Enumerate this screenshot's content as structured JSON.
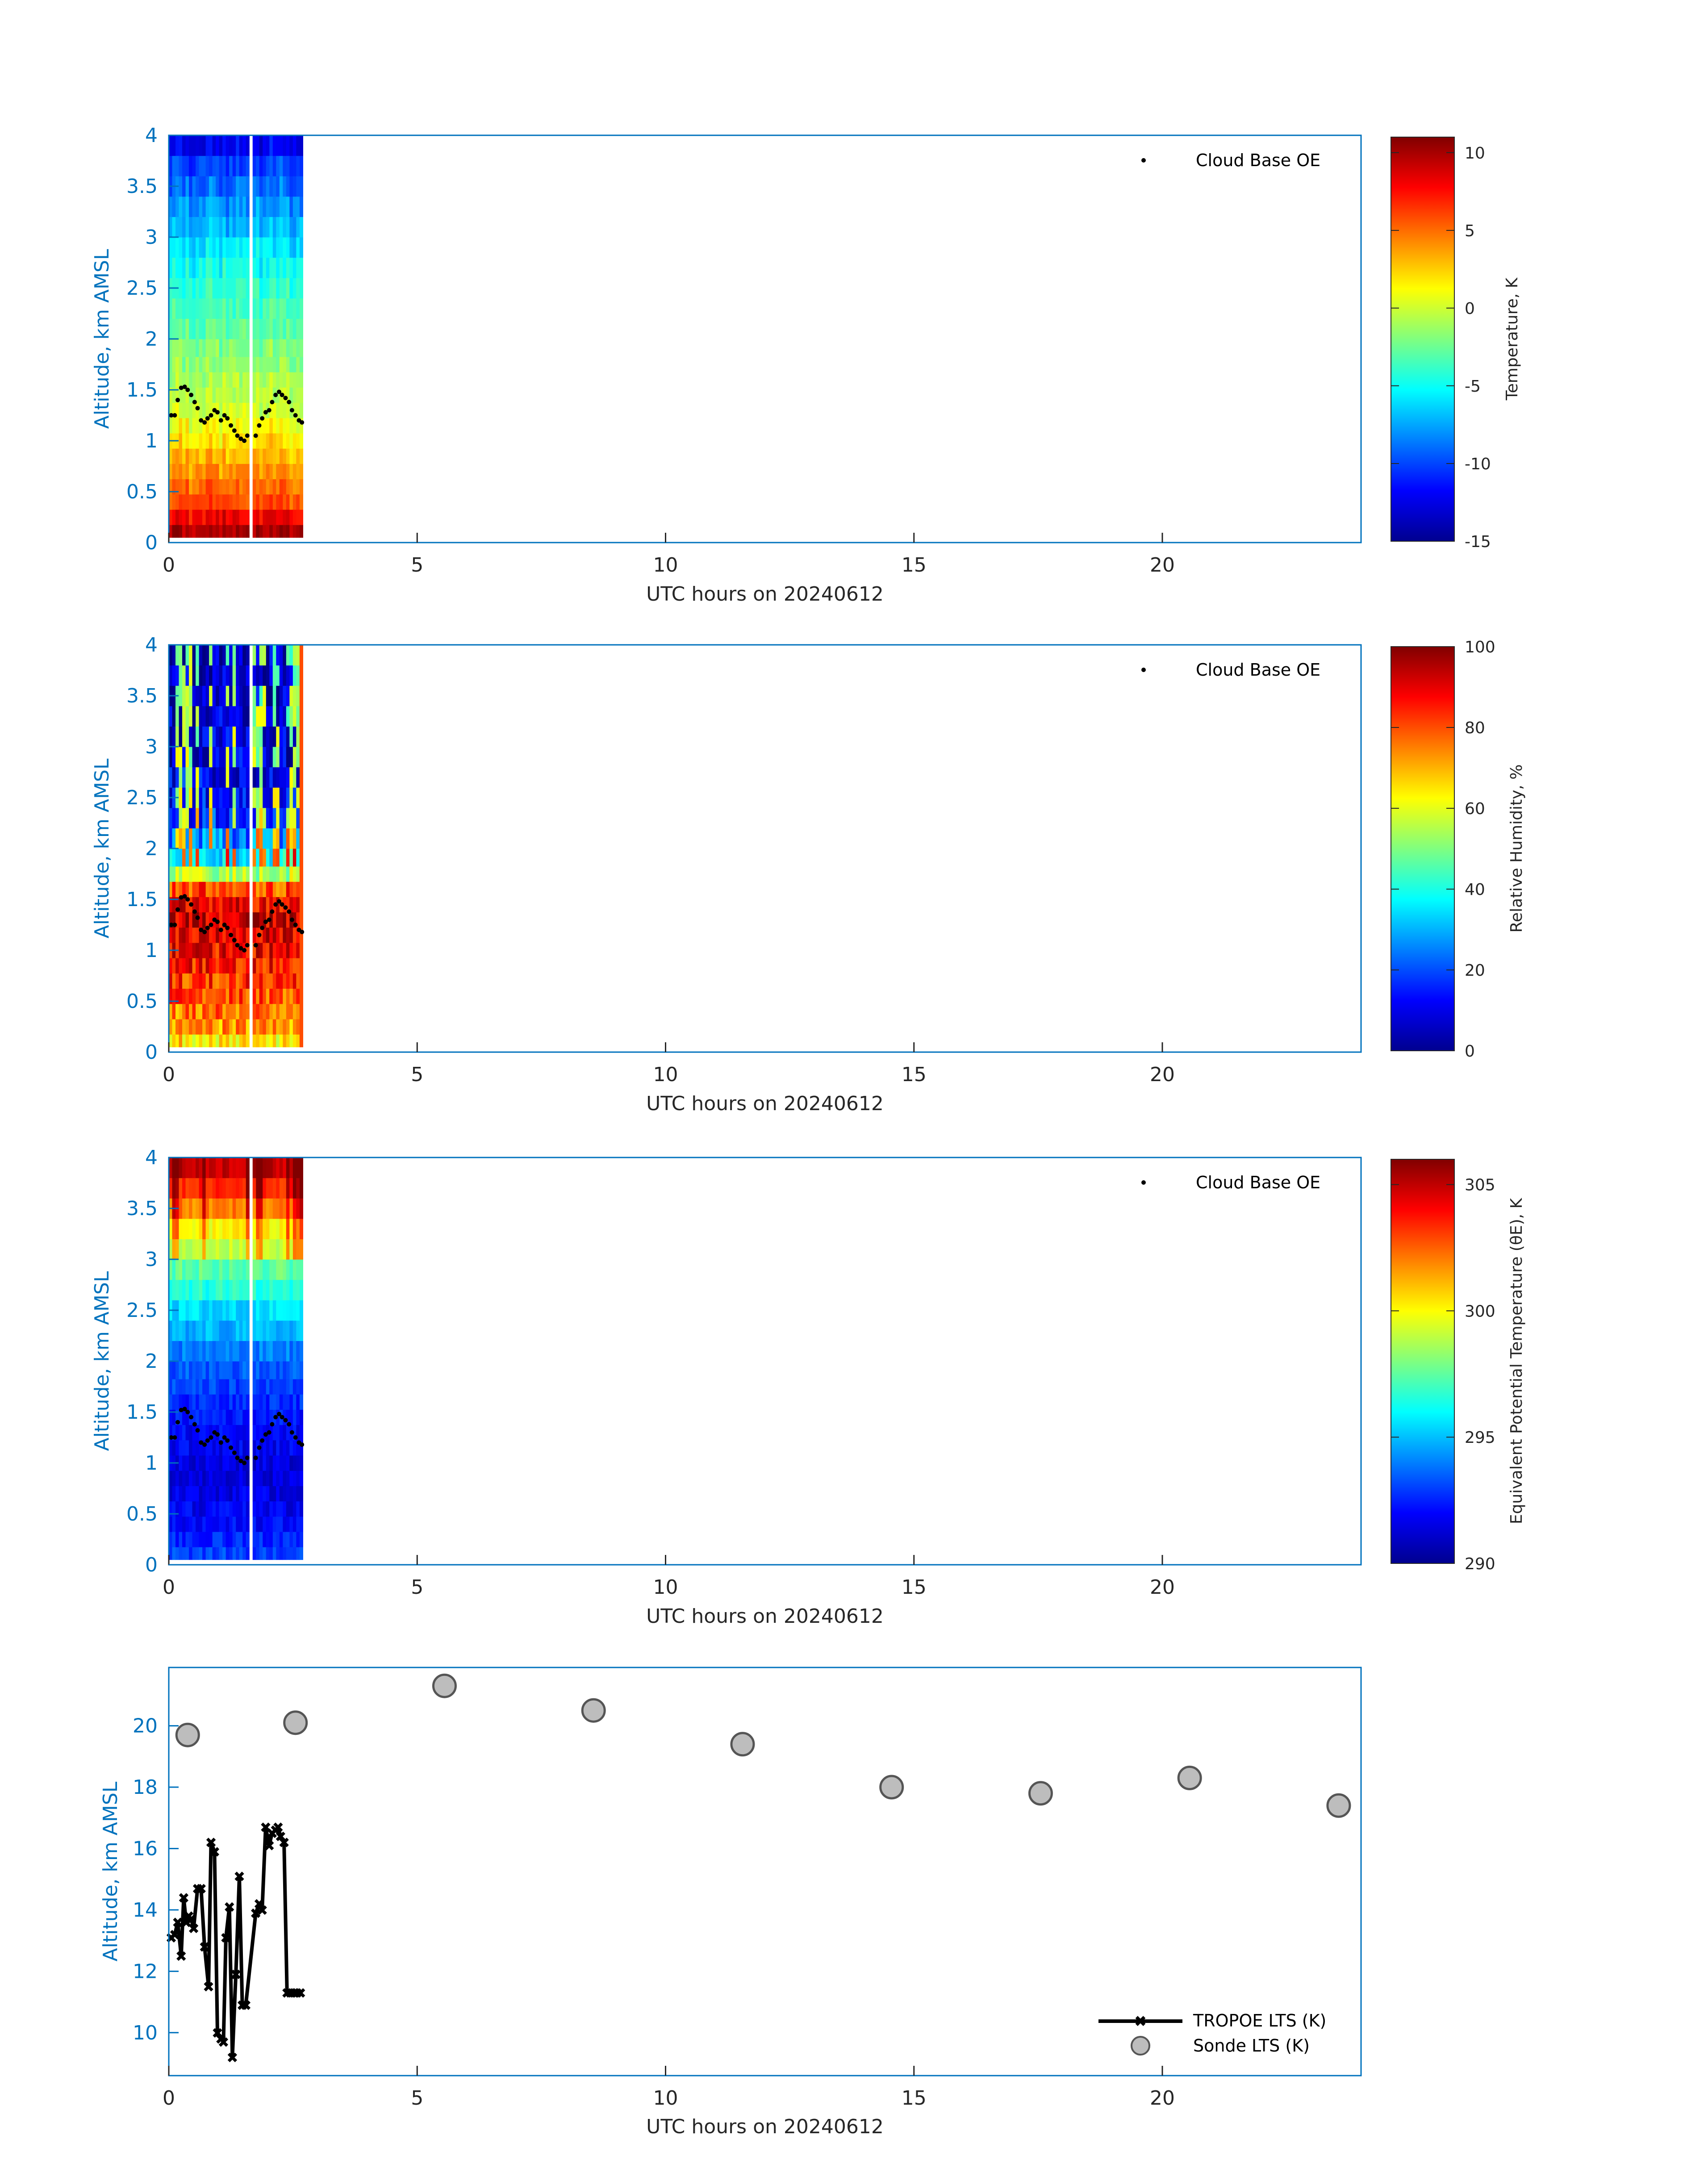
{
  "chart_data": [
    {
      "type": "heatmap",
      "xlabel": "UTC hours on 20240612",
      "ylabel": "Altitude, km AMSL",
      "xlim": [
        0,
        24
      ],
      "ylim": [
        0,
        4
      ],
      "x_ticks": [
        "0",
        "5",
        "10",
        "15",
        "20"
      ],
      "y_ticks": [
        "0",
        "0.5",
        "1",
        "1.5",
        "2",
        "2.5",
        "3",
        "3.5",
        "4"
      ],
      "legend": {
        "label": "Cloud Base OE",
        "placement": "top-right"
      },
      "colorbar": {
        "label": "Temperature, K",
        "range": [
          -15,
          11
        ],
        "ticks": [
          "-15",
          "-10",
          "-5",
          "0",
          "5",
          "10"
        ],
        "colormap": "jet"
      },
      "data_time_range": [
        0,
        2.7
      ],
      "data_gap": [
        1.62,
        1.72
      ],
      "profile_heights_km": [
        0.1,
        0.25,
        0.4,
        0.55,
        0.7,
        0.85,
        1.0,
        1.15,
        1.3,
        1.45,
        1.6,
        1.75,
        1.9,
        2.1,
        2.3,
        2.5,
        2.7,
        2.9,
        3.1,
        3.3,
        3.5,
        3.7,
        3.9
      ],
      "profile_values": [
        10,
        8,
        6,
        5,
        4,
        3,
        2,
        1,
        0,
        -0.5,
        -1,
        -1.5,
        -2,
        -3,
        -3.5,
        -4,
        -5,
        -6,
        -7,
        -8,
        -9,
        -10,
        -12
      ],
      "cloud_base": {
        "name": "Cloud Base OE",
        "x": [
          0.05,
          0.12,
          0.18,
          0.25,
          0.32,
          0.38,
          0.45,
          0.52,
          0.58,
          0.65,
          0.72,
          0.78,
          0.85,
          0.92,
          0.98,
          1.05,
          1.12,
          1.18,
          1.25,
          1.32,
          1.38,
          1.45,
          1.52,
          1.58,
          1.75,
          1.82,
          1.88,
          1.95,
          2.02,
          2.08,
          2.15,
          2.22,
          2.28,
          2.35,
          2.42,
          2.48,
          2.55,
          2.62,
          2.68
        ],
        "y": [
          1.25,
          1.25,
          1.4,
          1.52,
          1.53,
          1.5,
          1.45,
          1.38,
          1.32,
          1.2,
          1.18,
          1.22,
          1.25,
          1.3,
          1.28,
          1.2,
          1.25,
          1.22,
          1.15,
          1.1,
          1.05,
          1.02,
          1.0,
          1.05,
          1.05,
          1.15,
          1.22,
          1.28,
          1.3,
          1.38,
          1.45,
          1.48,
          1.45,
          1.42,
          1.38,
          1.3,
          1.25,
          1.2,
          1.18
        ]
      }
    },
    {
      "type": "heatmap",
      "xlabel": "UTC hours on 20240612",
      "ylabel": "Altitude, km AMSL",
      "xlim": [
        0,
        24
      ],
      "ylim": [
        0,
        4
      ],
      "x_ticks": [
        "0",
        "5",
        "10",
        "15",
        "20"
      ],
      "y_ticks": [
        "0",
        "0.5",
        "1",
        "1.5",
        "2",
        "2.5",
        "3",
        "3.5",
        "4"
      ],
      "legend": {
        "label": "Cloud Base OE",
        "placement": "top-right"
      },
      "colorbar": {
        "label": "Relative Humidity, %",
        "range": [
          0,
          100
        ],
        "ticks": [
          "0",
          "20",
          "40",
          "60",
          "80",
          "100"
        ],
        "colormap": "jet"
      },
      "data_time_range": [
        0,
        2.7
      ],
      "data_gap": [
        1.62,
        1.72
      ],
      "profile_heights_km": [
        0.1,
        0.25,
        0.4,
        0.55,
        0.7,
        0.85,
        1.0,
        1.15,
        1.3,
        1.45,
        1.6,
        1.75,
        1.9,
        2.1,
        2.3,
        2.5,
        2.7,
        2.9,
        3.1,
        3.3,
        3.5,
        3.7,
        3.9
      ],
      "profile_values": [
        65,
        72,
        76,
        80,
        83,
        86,
        88,
        90,
        92,
        88,
        80,
        55,
        38,
        25,
        18,
        14,
        12,
        10,
        9,
        8,
        8,
        7,
        6
      ],
      "cloud_base": "same as panel 1"
    },
    {
      "type": "heatmap",
      "xlabel": "UTC hours on 20240612",
      "ylabel": "Altitude, km AMSL",
      "xlim": [
        0,
        24
      ],
      "ylim": [
        0,
        4
      ],
      "x_ticks": [
        "0",
        "5",
        "10",
        "15",
        "20"
      ],
      "y_ticks": [
        "0",
        "0.5",
        "1",
        "1.5",
        "2",
        "2.5",
        "3",
        "3.5",
        "4"
      ],
      "legend": {
        "label": "Cloud Base OE",
        "placement": "top-right"
      },
      "colorbar": {
        "label": "Equivalent Potential Temperature (θE), K",
        "range": [
          290,
          306
        ],
        "ticks": [
          "290",
          "295",
          "300",
          "305"
        ],
        "colormap": "jet"
      },
      "data_time_range": [
        0,
        2.7
      ],
      "data_gap": [
        1.62,
        1.72
      ],
      "profile_heights_km": [
        0.1,
        0.25,
        0.4,
        0.55,
        0.7,
        0.85,
        1.0,
        1.15,
        1.3,
        1.45,
        1.6,
        1.75,
        1.9,
        2.1,
        2.3,
        2.5,
        2.7,
        2.9,
        3.1,
        3.3,
        3.5,
        3.7,
        3.9
      ],
      "profile_values": [
        293,
        292.5,
        292,
        291.8,
        291.6,
        291.5,
        291.5,
        291.8,
        292,
        292.3,
        292.6,
        293,
        293.4,
        294,
        294.8,
        295.5,
        296.5,
        297.5,
        299,
        300,
        302,
        303.5,
        305
      ],
      "cloud_base": "same as panel 1"
    },
    {
      "type": "scatter",
      "xlabel": "UTC hours on 20240612",
      "ylabel": "Altitude, km AMSL",
      "xlim": [
        0,
        24
      ],
      "ylim": [
        8.6,
        21.9
      ],
      "x_ticks": [
        "0",
        "5",
        "10",
        "15",
        "20"
      ],
      "y_ticks": [
        "10",
        "12",
        "14",
        "16",
        "18",
        "20"
      ],
      "legend_placement": "bottom-right",
      "series": [
        {
          "name": "TROPOE LTS (K)",
          "style": "black line with x markers",
          "x": [
            0.05,
            0.12,
            0.18,
            0.25,
            0.3,
            0.35,
            0.4,
            0.45,
            0.5,
            0.58,
            0.65,
            0.72,
            0.8,
            0.85,
            0.92,
            0.98,
            1.05,
            1.1,
            1.15,
            1.22,
            1.28,
            1.35,
            1.42,
            1.48,
            1.55,
            1.75,
            1.82,
            1.88,
            1.95,
            2.02,
            2.08,
            2.15,
            2.2,
            2.25,
            2.32,
            2.38,
            2.45,
            2.52,
            2.58,
            2.65
          ],
          "y": [
            13.1,
            13.2,
            13.6,
            12.5,
            14.4,
            13.6,
            13.8,
            13.7,
            13.4,
            14.7,
            14.7,
            12.8,
            11.5,
            16.2,
            15.9,
            10.0,
            9.8,
            9.7,
            13.1,
            14.1,
            9.2,
            11.9,
            15.1,
            10.9,
            10.9,
            13.9,
            14.2,
            14.0,
            16.7,
            16.1,
            16.5,
            16.6,
            16.7,
            16.4,
            16.2,
            11.3,
            11.3,
            11.3,
            11.3,
            11.3
          ]
        },
        {
          "name": "Sonde LTS (K)",
          "style": "grey filled circles",
          "x": [
            0.38,
            2.55,
            5.55,
            8.55,
            11.55,
            14.55,
            17.55,
            20.55,
            23.55
          ],
          "y": [
            19.7,
            20.1,
            21.3,
            20.5,
            19.4,
            18.0,
            17.8,
            18.3,
            17.4
          ]
        }
      ]
    }
  ]
}
